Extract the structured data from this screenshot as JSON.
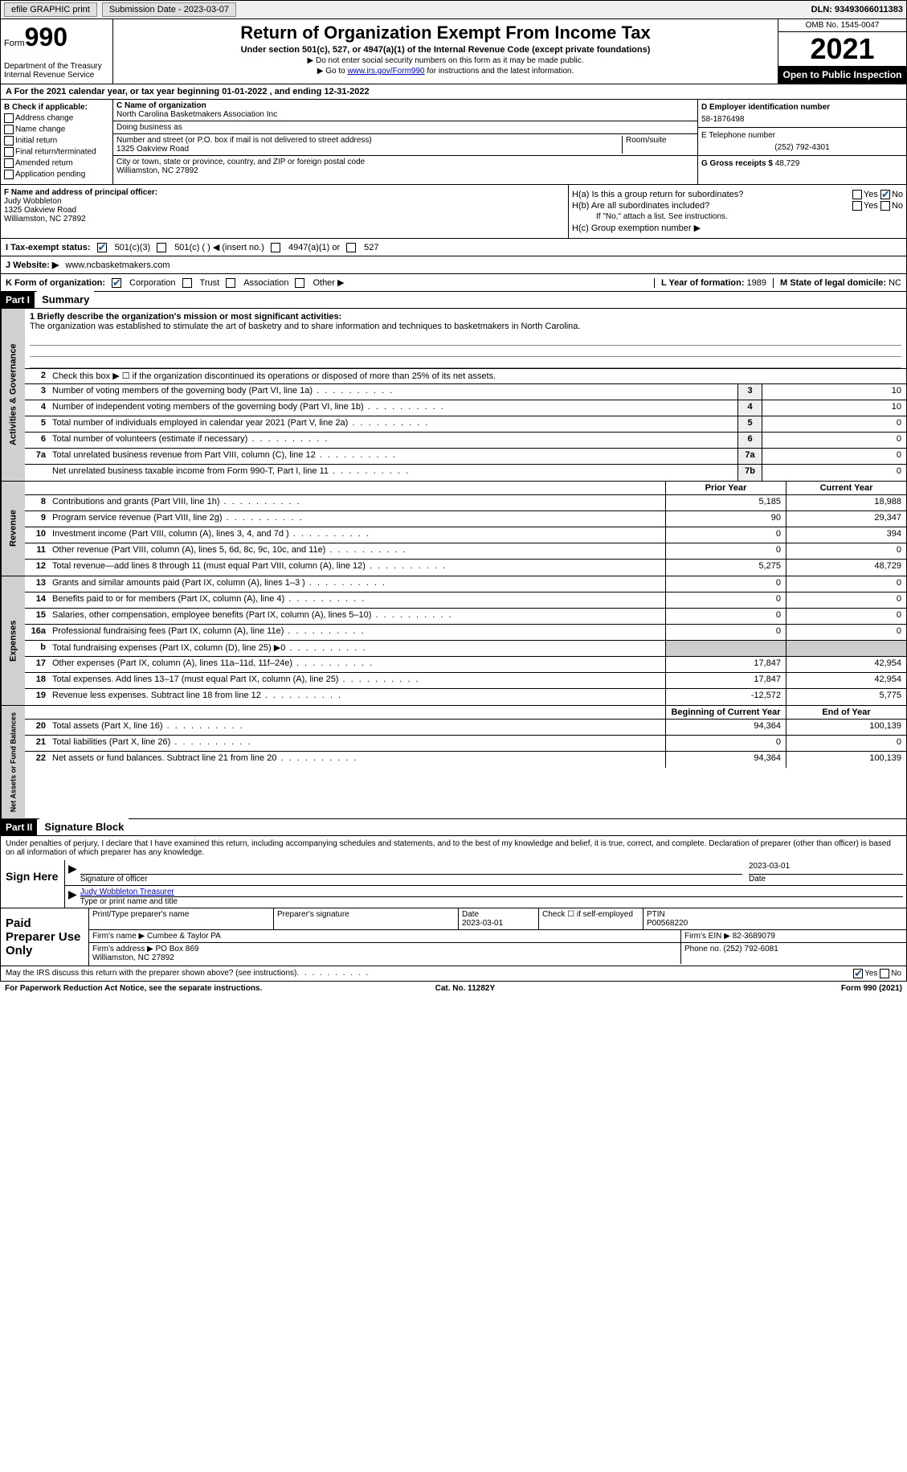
{
  "topbar": {
    "efile_label": "efile GRAPHIC print",
    "submission_label": "Submission Date - 2023-03-07",
    "dln_label": "DLN: 93493066011383"
  },
  "header": {
    "form_label": "Form",
    "form_number": "990",
    "title": "Return of Organization Exempt From Income Tax",
    "subtitle": "Under section 501(c), 527, or 4947(a)(1) of the Internal Revenue Code (except private foundations)",
    "note1": "▶ Do not enter social security numbers on this form as it may be made public.",
    "note2_pre": "▶ Go to ",
    "note2_link": "www.irs.gov/Form990",
    "note2_post": " for instructions and the latest information.",
    "dept": "Department of the Treasury\nInternal Revenue Service",
    "omb": "OMB No. 1545-0047",
    "year": "2021",
    "inspect": "Open to Public Inspection"
  },
  "line_a": "A For the 2021 calendar year, or tax year beginning 01-01-2022    , and ending 12-31-2022",
  "box_b": {
    "title": "B Check if applicable:",
    "items": [
      "Address change",
      "Name change",
      "Initial return",
      "Final return/terminated",
      "Amended return",
      "Application pending"
    ]
  },
  "box_c": {
    "name_label": "C Name of organization",
    "name": "North Carolina Basketmakers Association Inc",
    "dba_label": "Doing business as",
    "addr_label": "Number and street (or P.O. box if mail is not delivered to street address)",
    "addr": "1325 Oakview Road",
    "room_label": "Room/suite",
    "city_label": "City or town, state or province, country, and ZIP or foreign postal code",
    "city": "Williamston, NC  27892"
  },
  "box_d": {
    "label": "D Employer identification number",
    "value": "58-1876498"
  },
  "box_e": {
    "label": "E Telephone number",
    "value": "(252) 792-4301"
  },
  "box_g": {
    "label": "G Gross receipts $",
    "value": "48,729"
  },
  "box_f": {
    "label": "F  Name and address of principal officer:",
    "name": "Judy Wobbleton",
    "addr1": "1325 Oakview Road",
    "addr2": "Williamston, NC  27892"
  },
  "box_h": {
    "ha": "H(a)  Is this a group return for subordinates?",
    "hb": "H(b)  Are all subordinates included?",
    "hb_note": "If \"No,\" attach a list. See instructions.",
    "hc": "H(c)  Group exemption number ▶",
    "yes": "Yes",
    "no": "No"
  },
  "line_i": {
    "label": "I   Tax-exempt status:",
    "opts": [
      "501(c)(3)",
      "501(c) (  ) ◀ (insert no.)",
      "4947(a)(1) or",
      "527"
    ]
  },
  "line_j": {
    "label": "J   Website: ▶  ",
    "value": "www.ncbasketmakers.com"
  },
  "line_k": {
    "label": "K Form of organization:",
    "opts": [
      "Corporation",
      "Trust",
      "Association",
      "Other ▶"
    ],
    "l_label": "L Year of formation: ",
    "l_val": "1989",
    "m_label": "M State of legal domicile: ",
    "m_val": "NC"
  },
  "part1": {
    "header": "Part I",
    "title": "Summary",
    "mission_label": "1   Briefly describe the organization's mission or most significant activities:",
    "mission": "The organization was established to stimulate the art of basketry and to share information and techniques to basketmakers in North Carolina.",
    "line2": "Check this box ▶ ☐  if the organization discontinued its operations or disposed of more than 25% of its net assets.",
    "gov_label": "Activities & Governance",
    "rev_label": "Revenue",
    "exp_label": "Expenses",
    "net_label": "Net Assets or Fund Balances",
    "lines_gov": [
      {
        "n": "3",
        "t": "Number of voting members of the governing body (Part VI, line 1a)",
        "box": "3",
        "v": "10"
      },
      {
        "n": "4",
        "t": "Number of independent voting members of the governing body (Part VI, line 1b)",
        "box": "4",
        "v": "10"
      },
      {
        "n": "5",
        "t": "Total number of individuals employed in calendar year 2021 (Part V, line 2a)",
        "box": "5",
        "v": "0"
      },
      {
        "n": "6",
        "t": "Total number of volunteers (estimate if necessary)",
        "box": "6",
        "v": "0"
      },
      {
        "n": "7a",
        "t": "Total unrelated business revenue from Part VIII, column (C), line 12",
        "box": "7a",
        "v": "0"
      },
      {
        "n": "",
        "t": "Net unrelated business taxable income from Form 990-T, Part I, line 11",
        "box": "7b",
        "v": "0"
      }
    ],
    "prior_hdr": "Prior Year",
    "curr_hdr": "Current Year",
    "lines_rev": [
      {
        "n": "8",
        "t": "Contributions and grants (Part VIII, line 1h)",
        "p": "5,185",
        "c": "18,988"
      },
      {
        "n": "9",
        "t": "Program service revenue (Part VIII, line 2g)",
        "p": "90",
        "c": "29,347"
      },
      {
        "n": "10",
        "t": "Investment income (Part VIII, column (A), lines 3, 4, and 7d )",
        "p": "0",
        "c": "394"
      },
      {
        "n": "11",
        "t": "Other revenue (Part VIII, column (A), lines 5, 6d, 8c, 9c, 10c, and 11e)",
        "p": "0",
        "c": "0"
      },
      {
        "n": "12",
        "t": "Total revenue—add lines 8 through 11 (must equal Part VIII, column (A), line 12)",
        "p": "5,275",
        "c": "48,729"
      }
    ],
    "lines_exp": [
      {
        "n": "13",
        "t": "Grants and similar amounts paid (Part IX, column (A), lines 1–3 )",
        "p": "0",
        "c": "0"
      },
      {
        "n": "14",
        "t": "Benefits paid to or for members (Part IX, column (A), line 4)",
        "p": "0",
        "c": "0"
      },
      {
        "n": "15",
        "t": "Salaries, other compensation, employee benefits (Part IX, column (A), lines 5–10)",
        "p": "0",
        "c": "0"
      },
      {
        "n": "16a",
        "t": "Professional fundraising fees (Part IX, column (A), line 11e)",
        "p": "0",
        "c": "0"
      },
      {
        "n": "b",
        "t": "Total fundraising expenses (Part IX, column (D), line 25) ▶0",
        "p": "",
        "c": "",
        "gray": true
      },
      {
        "n": "17",
        "t": "Other expenses (Part IX, column (A), lines 11a–11d, 11f–24e)",
        "p": "17,847",
        "c": "42,954"
      },
      {
        "n": "18",
        "t": "Total expenses. Add lines 13–17 (must equal Part IX, column (A), line 25)",
        "p": "17,847",
        "c": "42,954"
      },
      {
        "n": "19",
        "t": "Revenue less expenses. Subtract line 18 from line 12",
        "p": "-12,572",
        "c": "5,775"
      }
    ],
    "begin_hdr": "Beginning of Current Year",
    "end_hdr": "End of Year",
    "lines_net": [
      {
        "n": "20",
        "t": "Total assets (Part X, line 16)",
        "p": "94,364",
        "c": "100,139"
      },
      {
        "n": "21",
        "t": "Total liabilities (Part X, line 26)",
        "p": "0",
        "c": "0"
      },
      {
        "n": "22",
        "t": "Net assets or fund balances. Subtract line 21 from line 20",
        "p": "94,364",
        "c": "100,139"
      }
    ]
  },
  "part2": {
    "header": "Part II",
    "title": "Signature Block",
    "decl": "Under penalties of perjury, I declare that I have examined this return, including accompanying schedules and statements, and to the best of my knowledge and belief, it is true, correct, and complete. Declaration of preparer (other than officer) is based on all information of which preparer has any knowledge.",
    "sign_here": "Sign Here",
    "sig_officer": "Signature of officer",
    "sig_date": "2023-03-01",
    "date_lbl": "Date",
    "sig_name": "Judy Wobbleton Treasurer",
    "sig_name_lbl": "Type or print name and title",
    "paid_label": "Paid Preparer Use Only",
    "prep_name_lbl": "Print/Type preparer's name",
    "prep_sig_lbl": "Preparer's signature",
    "prep_date_lbl": "Date",
    "prep_date": "2023-03-01",
    "check_self": "Check ☐ if self-employed",
    "ptin_lbl": "PTIN",
    "ptin": "P00568220",
    "firm_name_lbl": "Firm's name   ▶",
    "firm_name": "Cumbee & Taylor PA",
    "firm_ein_lbl": "Firm's EIN ▶",
    "firm_ein": "82-3689079",
    "firm_addr_lbl": "Firm's address ▶",
    "firm_addr": "PO Box 869\nWilliamston, NC  27892",
    "phone_lbl": "Phone no.",
    "phone": "(252) 792-6081",
    "discuss": "May the IRS discuss this return with the preparer shown above? (see instructions)",
    "paperwork": "For Paperwork Reduction Act Notice, see the separate instructions.",
    "cat": "Cat. No. 11282Y",
    "form_foot": "Form 990 (2021)"
  }
}
